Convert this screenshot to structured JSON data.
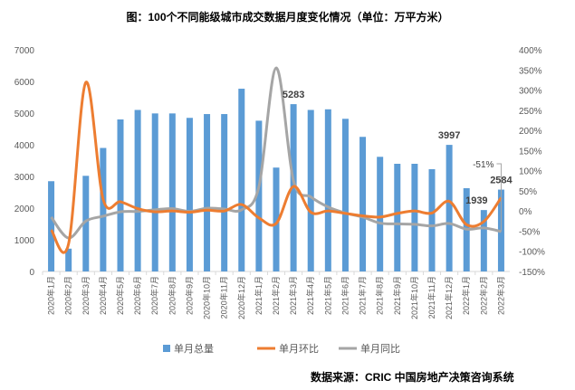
{
  "chart_data": {
    "type": "bar+line",
    "title": "图：100个不同能级城市成交数据月度变化情况（单位：万平方米）",
    "source": "数据来源：CRIC 中国房地产决策咨询系统",
    "categories": [
      "2020年1月",
      "2020年2月",
      "2020年3月",
      "2020年4月",
      "2020年5月",
      "2020年6月",
      "2020年7月",
      "2020年8月",
      "2020年9月",
      "2020年10月",
      "2020年11月",
      "2020年12月",
      "2021年1月",
      "2021年2月",
      "2021年3月",
      "2021年4月",
      "2021年5月",
      "2021年6月",
      "2021年7月",
      "2021年8月",
      "2021年9月",
      "2021年10月",
      "2021年11月",
      "2021年12月",
      "2022年1月",
      "2022年2月",
      "2022年3月"
    ],
    "left_axis": {
      "ylim": [
        0,
        7000
      ],
      "ticks": [
        "0",
        "1000",
        "2000",
        "3000",
        "4000",
        "5000",
        "6000",
        "7000"
      ]
    },
    "right_axis": {
      "ylim": [
        -150,
        400
      ],
      "ticks": [
        "-150%",
        "-100%",
        "-50%",
        "0%",
        "50%",
        "100%",
        "150%",
        "200%",
        "250%",
        "300%",
        "350%",
        "400%"
      ]
    },
    "series": [
      {
        "name": "单月总量",
        "type": "bar",
        "axis": "left",
        "color": "#5B9BD5",
        "values": [
          2850,
          720,
          3020,
          3900,
          4800,
          5100,
          4990,
          4990,
          4850,
          4970,
          4970,
          5770,
          4760,
          3280,
          5283,
          5100,
          5120,
          4820,
          4250,
          3620,
          3400,
          3400,
          3230,
          3997,
          2630,
          1939,
          2584
        ]
      },
      {
        "name": "单月环比",
        "type": "line",
        "axis": "right",
        "color": "#ED7D31",
        "values": [
          -47,
          -82,
          319,
          29,
          23,
          6,
          -2,
          0,
          -3,
          2,
          0,
          16,
          -17,
          -31,
          61,
          -3,
          0,
          -6,
          -12,
          -15,
          -6,
          0,
          -5,
          24,
          -34,
          -26,
          33
        ]
      },
      {
        "name": "单月同比",
        "type": "line",
        "axis": "right",
        "color": "#A5A5A5",
        "values": [
          -15,
          -67,
          -25,
          -13,
          -2,
          -1,
          3,
          6,
          -1,
          7,
          5,
          3,
          60,
          355,
          75,
          35,
          10,
          -5,
          -15,
          -30,
          -32,
          -33,
          -37,
          -31,
          -45,
          -42,
          -51
        ]
      }
    ],
    "data_labels": [
      {
        "index": 14,
        "text": "5283"
      },
      {
        "index": 23,
        "text": "3997"
      },
      {
        "index": 25,
        "text": "1939"
      },
      {
        "index": 26,
        "text": "2584"
      }
    ],
    "annotation": "-51%",
    "legend": "bottom"
  }
}
